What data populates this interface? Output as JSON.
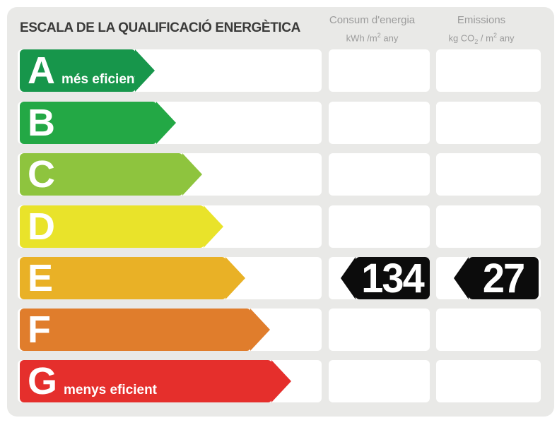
{
  "title": "ESCALA DE LA QUALIFICACIÓ ENERGÈTICA",
  "columns": {
    "consum": {
      "title": "Consum d'energia",
      "unit": {
        "pre": "kWh /m",
        "sup": "2",
        "post": " any"
      }
    },
    "emissions": {
      "title": "Emissions",
      "unit": {
        "pre": "kg CO",
        "sub": "2",
        "mid": " / m",
        "sup": "2",
        "post": " any"
      }
    }
  },
  "scale": {
    "badge_bg": "#0c0c0c",
    "rows": [
      {
        "letter": "A",
        "label": "més eficient",
        "color": "#17964b",
        "consum": "",
        "emissions": ""
      },
      {
        "letter": "B",
        "label": "",
        "color": "#23a845",
        "consum": "",
        "emissions": ""
      },
      {
        "letter": "C",
        "label": "",
        "color": "#8ec43e",
        "consum": "",
        "emissions": ""
      },
      {
        "letter": "D",
        "label": "",
        "color": "#e9e32a",
        "consum": "",
        "emissions": ""
      },
      {
        "letter": "E",
        "label": "",
        "color": "#e9b126",
        "consum": "134",
        "emissions": "27"
      },
      {
        "letter": "F",
        "label": "",
        "color": "#e07d2c",
        "consum": "",
        "emissions": ""
      },
      {
        "letter": "G",
        "label": "menys eficient",
        "color": "#e52f2c",
        "consum": "",
        "emissions": ""
      }
    ]
  },
  "chart_data": {
    "type": "bar",
    "title": "ESCALA DE LA QUALIFICACIÓ ENERGÈTICA",
    "categories": [
      "A",
      "B",
      "C",
      "D",
      "E",
      "F",
      "G"
    ],
    "bar_colors": [
      "#17964b",
      "#23a845",
      "#8ec43e",
      "#e9e32a",
      "#e9b126",
      "#e07d2c",
      "#e52f2c"
    ],
    "bar_relative_widths": [
      192,
      222,
      259,
      289,
      320,
      355,
      385
    ],
    "annotations": [
      "A = més eficient",
      "G = menys eficient"
    ],
    "rating_letter": "E",
    "series": [
      {
        "name": "Consum d'energia (kWh/m2 any)",
        "values": [
          null,
          null,
          null,
          null,
          134,
          null,
          null
        ]
      },
      {
        "name": "Emissions (kg CO2/m2 any)",
        "values": [
          null,
          null,
          null,
          null,
          27,
          null,
          null
        ]
      }
    ],
    "legend_position": "top",
    "grid": false
  },
  "panel_bg": "#e9e9e7",
  "cell_bg": "#ffffff",
  "title_color": "#3b3b3a",
  "header_color": "#9b9b9b"
}
